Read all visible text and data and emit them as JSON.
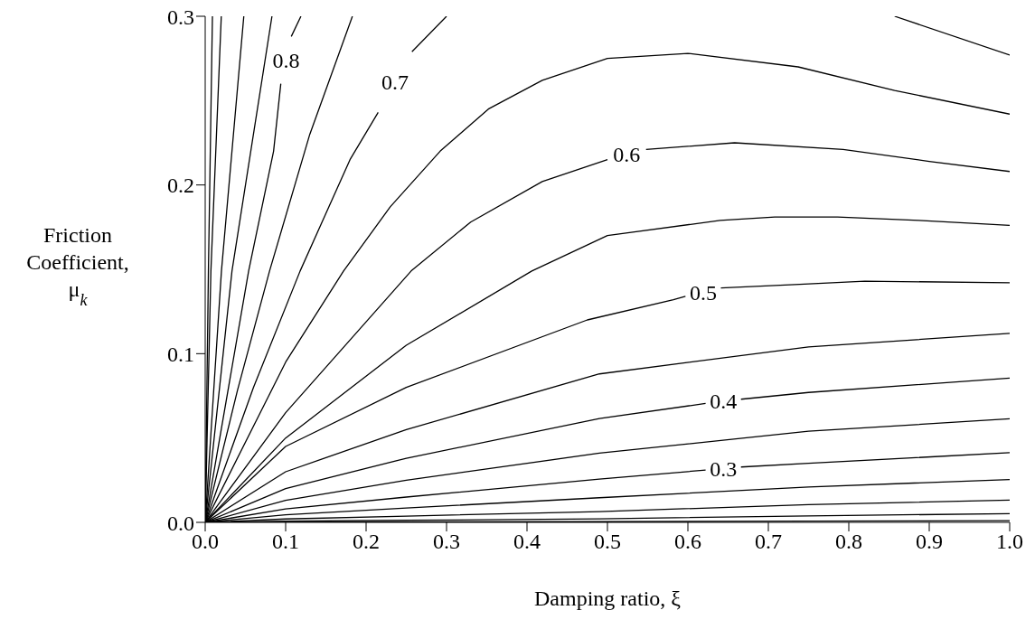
{
  "chart_data": {
    "type": "line",
    "xlabel": "Damping ratio, ξ",
    "ylabel": "Friction Coefficient, μ$_{k}$",
    "xlim": [
      0,
      1
    ],
    "ylim": [
      0,
      0.3
    ],
    "xticks": [
      {
        "value": 0,
        "label": "0.0"
      },
      {
        "value": 0.1,
        "label": "0.1"
      },
      {
        "value": 0.2,
        "label": "0.2"
      },
      {
        "value": 0.3,
        "label": "0.3"
      },
      {
        "value": 0.4,
        "label": "0.4"
      },
      {
        "value": 0.5,
        "label": "0.5"
      },
      {
        "value": 0.6,
        "label": "0.6"
      },
      {
        "value": 0.7,
        "label": "0.7"
      },
      {
        "value": 0.8,
        "label": "0.8"
      },
      {
        "value": 0.9,
        "label": "0.9"
      },
      {
        "value": 1,
        "label": "1.0"
      }
    ],
    "yticks": [
      {
        "value": 0,
        "label": "0.0"
      },
      {
        "value": 0.1,
        "label": "0.1"
      },
      {
        "value": 0.2,
        "label": "0.2"
      },
      {
        "value": 0.3,
        "label": "0.3"
      }
    ],
    "grid": false,
    "marker": "none",
    "line_style": "solid",
    "series": [
      {
        "color": "#000000",
        "x": [
          0,
          0.004,
          0.009
        ],
        "values": [
          0,
          0.149,
          0.3
        ]
      },
      {
        "color": "#000000",
        "x": [
          0,
          0.0071,
          0.02
        ],
        "values": [
          0,
          0.149,
          0.3
        ]
      },
      {
        "color": "#000000",
        "x": [
          0,
          0.0202,
          0.048
        ],
        "values": [
          0,
          0.149,
          0.3
        ]
      },
      {
        "color": "#000000",
        "x": [
          0,
          0.0333,
          0.083
        ],
        "values": [
          0,
          0.149,
          0.3
        ]
      },
      {
        "name": "0.8",
        "color": "#000000",
        "x": [
          0,
          0.054,
          0.085,
          0.094,
          0.1,
          0.107,
          0.119
        ],
        "values": [
          0,
          0.149,
          0.22,
          0.26,
          null,
          0.288,
          0.3
        ]
      },
      {
        "color": "#000000",
        "x": [
          0,
          0.04,
          0.08,
          0.13,
          0.183
        ],
        "values": [
          0,
          0.078,
          0.149,
          0.23,
          0.3
        ]
      },
      {
        "name": "0.7",
        "color": "#000000",
        "x": [
          0,
          0.06,
          0.118,
          0.18,
          0.215,
          0.236,
          0.257,
          0.3
        ],
        "values": [
          0,
          0.08,
          0.149,
          0.215,
          0.243,
          null,
          0.279,
          0.3
        ]
      },
      {
        "color": "#000000",
        "x": [
          0.857,
          1
        ],
        "values": [
          0.3,
          0.277
        ]
      },
      {
        "color": "#000000",
        "x": [
          0,
          0.1,
          0.172,
          0.23,
          0.292,
          0.352,
          0.419,
          0.5,
          0.6,
          0.737,
          0.857,
          1
        ],
        "values": [
          0,
          0.095,
          0.149,
          0.187,
          0.22,
          0.245,
          0.262,
          0.275,
          0.278,
          0.27,
          0.256,
          0.242
        ]
      },
      {
        "name": "0.6",
        "color": "#000000",
        "x": [
          0,
          0.1,
          0.256,
          0.33,
          0.419,
          0.5,
          0.524,
          0.548,
          0.658,
          0.793,
          0.9,
          1
        ],
        "values": [
          0,
          0.065,
          0.149,
          0.178,
          0.202,
          0.215,
          null,
          0.221,
          0.225,
          0.221,
          0.214,
          0.208
        ]
      },
      {
        "color": "#000000",
        "x": [
          0,
          0.1,
          0.25,
          0.406,
          0.5,
          0.64,
          0.708,
          0.786,
          0.887,
          1
        ],
        "values": [
          0,
          0.05,
          0.105,
          0.149,
          0.17,
          0.179,
          0.181,
          0.181,
          0.179,
          0.176
        ]
      },
      {
        "name": "0.5",
        "color": "#000000",
        "x": [
          0,
          0.1,
          0.25,
          0.475,
          0.582,
          0.597,
          0.619,
          0.641,
          0.733,
          0.82,
          1
        ],
        "values": [
          0,
          0.045,
          0.08,
          0.12,
          0.132,
          0.134,
          null,
          0.139,
          0.141,
          0.143,
          0.142
        ]
      },
      {
        "color": "#000000",
        "x": [
          0,
          0.1,
          0.25,
          0.49,
          0.75,
          1
        ],
        "values": [
          0,
          0.03,
          0.055,
          0.088,
          0.104,
          0.112
        ]
      },
      {
        "name": "0.4",
        "color": "#000000",
        "x": [
          0,
          0.1,
          0.25,
          0.49,
          0.622,
          0.644,
          0.666,
          0.75,
          1
        ],
        "values": [
          0,
          0.02,
          0.038,
          0.0615,
          0.0705,
          null,
          0.073,
          0.077,
          0.0855
        ]
      },
      {
        "color": "#000000",
        "x": [
          0,
          0.1,
          0.25,
          0.49,
          0.75,
          1
        ],
        "values": [
          0,
          0.013,
          0.025,
          0.041,
          0.054,
          0.0614
        ]
      },
      {
        "name": "0.3",
        "color": "#000000",
        "x": [
          0,
          0.1,
          0.25,
          0.49,
          0.622,
          0.644,
          0.666,
          0.75,
          1
        ],
        "values": [
          0,
          0.008,
          0.015,
          0.0257,
          0.031,
          null,
          0.0328,
          0.035,
          0.0413
        ]
      },
      {
        "color": "#000000",
        "x": [
          0,
          0.1,
          0.25,
          0.49,
          0.75,
          1
        ],
        "values": [
          0,
          0.0045,
          0.0085,
          0.0146,
          0.021,
          0.0254
        ]
      },
      {
        "color": "#000000",
        "x": [
          0,
          0.1,
          0.25,
          0.49,
          0.75,
          1
        ],
        "values": [
          0,
          0.002,
          0.0037,
          0.0064,
          0.0105,
          0.0132
        ]
      },
      {
        "color": "#000000",
        "x": [
          0,
          0.1,
          0.25,
          0.49,
          0.75,
          1
        ],
        "values": [
          0,
          0.0007,
          0.0012,
          0.0021,
          0.0038,
          0.0052
        ]
      },
      {
        "color": "#000000",
        "x": [
          0,
          0.1,
          0.25,
          0.49,
          0.75,
          1
        ],
        "values": [
          0,
          0.0001,
          0.0002,
          0.0004,
          0.0007,
          0.001
        ]
      }
    ]
  }
}
